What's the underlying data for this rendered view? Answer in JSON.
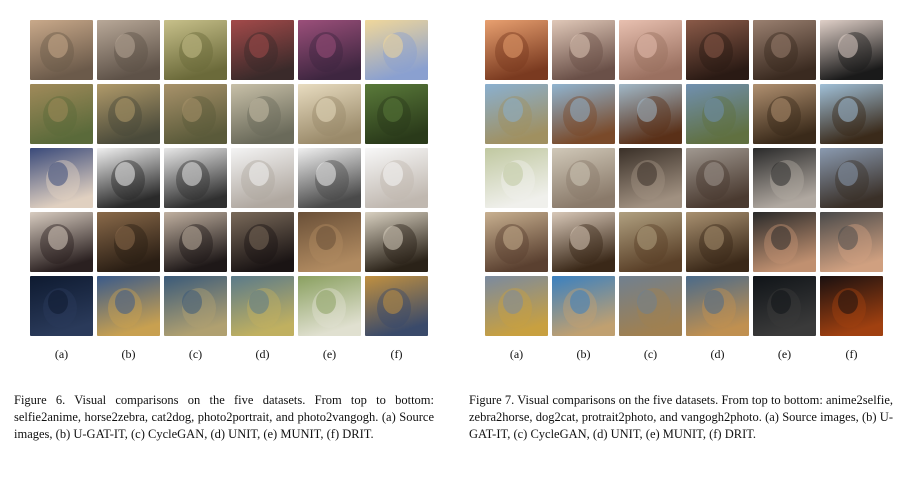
{
  "figures": [
    {
      "id": "fig6",
      "column_labels": [
        "(a)",
        "(b)",
        "(c)",
        "(d)",
        "(e)",
        "(f)"
      ],
      "rows": [
        {
          "content": "selfie2anime",
          "tones": [
            [
              "#c9a98a",
              "#6b5a4a"
            ],
            [
              "#b8a898",
              "#5e5248"
            ],
            [
              "#c7c08a",
              "#6b6a3a"
            ],
            [
              "#a34a4a",
              "#3a2a2a"
            ],
            [
              "#9b4f7a",
              "#3e2640"
            ],
            [
              "#f0d79a",
              "#8aa0d0"
            ]
          ]
        },
        {
          "content": "horse2zebra",
          "tones": [
            [
              "#a08a5a",
              "#5a6a3a"
            ],
            [
              "#b09a6a",
              "#4a4a3a"
            ],
            [
              "#a8926a",
              "#5a5a3a"
            ],
            [
              "#c8c0a8",
              "#6a6a5a"
            ],
            [
              "#e8dcc0",
              "#9a8a6a"
            ],
            [
              "#5a7a3a",
              "#2a3a1a"
            ]
          ]
        },
        {
          "content": "cat2dog",
          "tones": [
            [
              "#3a4a7a",
              "#e0d0c0"
            ],
            [
              "#f0f0f0",
              "#2a2a2a"
            ],
            [
              "#e8e8e8",
              "#303030"
            ],
            [
              "#f4f4f4",
              "#b0a8a0"
            ],
            [
              "#f0f0f0",
              "#4a4a4a"
            ],
            [
              "#f8f8f8",
              "#c0b8b0"
            ]
          ]
        },
        {
          "content": "photo2portrait",
          "tones": [
            [
              "#d8ccc0",
              "#2a2020"
            ],
            [
              "#8a6a4a",
              "#2a1e14"
            ],
            [
              "#c0b0a0",
              "#1e1818"
            ],
            [
              "#7a6a5a",
              "#1a1414"
            ],
            [
              "#6a5038",
              "#b08a60"
            ],
            [
              "#d8d0c0",
              "#2a2218"
            ]
          ]
        },
        {
          "content": "photo2vangogh",
          "tones": [
            [
              "#0e1a30",
              "#2a3a5a"
            ],
            [
              "#3a5a8a",
              "#c8a050"
            ],
            [
              "#3a5a7a",
              "#b0a070"
            ],
            [
              "#5a7a8a",
              "#c0b060"
            ],
            [
              "#8aa060",
              "#e0e0d0"
            ],
            [
              "#c09040",
              "#3a4a6a"
            ]
          ]
        }
      ],
      "caption": "Figure 6. Visual comparisons on the five datasets. From top to bottom: selfie2anime, horse2zebra, cat2dog, photo2portrait, and photo2vangogh. (a) Source images, (b) U-GAT-IT, (c) CycleGAN, (d) UNIT, (e) MUNIT, (f) DRIT."
    },
    {
      "id": "fig7",
      "column_labels": [
        "(a)",
        "(b)",
        "(c)",
        "(d)",
        "(e)",
        "(f)"
      ],
      "rows": [
        {
          "content": "anime2selfie",
          "tones": [
            [
              "#e8a070",
              "#7a3a20"
            ],
            [
              "#e0c8b8",
              "#6a5048"
            ],
            [
              "#e8c0b0",
              "#9a7060"
            ],
            [
              "#8a5a48",
              "#2a1a14"
            ],
            [
              "#9a8070",
              "#3a2a20"
            ],
            [
              "#e0d0c8",
              "#1a1a1a"
            ]
          ]
        },
        {
          "content": "zebra2horse",
          "tones": [
            [
              "#8ab0d0",
              "#a09060"
            ],
            [
              "#90b4d0",
              "#7a4a2a"
            ],
            [
              "#a0b8c8",
              "#5a3018"
            ],
            [
              "#7090b0",
              "#607040"
            ],
            [
              "#b09070",
              "#3a2a1a"
            ],
            [
              "#a0c0d8",
              "#3a2a1a"
            ]
          ]
        },
        {
          "content": "dog2cat",
          "tones": [
            [
              "#c0c8a0",
              "#f0f0ec"
            ],
            [
              "#d0c8b8",
              "#8a7a6a"
            ],
            [
              "#3a3028",
              "#a09080"
            ],
            [
              "#a09890",
              "#4a3a30"
            ],
            [
              "#2a2a2a",
              "#b0a8a0"
            ],
            [
              "#8a9ab0",
              "#3a3028"
            ]
          ]
        },
        {
          "content": "protrait2photo",
          "tones": [
            [
              "#c8b090",
              "#5a4030"
            ],
            [
              "#d8c8b8",
              "#3a2818"
            ],
            [
              "#b0a080",
              "#5a4028"
            ],
            [
              "#a89070",
              "#3a2818"
            ],
            [
              "#2a2a2a",
              "#c09070"
            ],
            [
              "#4a4a4a",
              "#d0a080"
            ]
          ]
        },
        {
          "content": "vangogh2photo",
          "tones": [
            [
              "#7a8aa0",
              "#c8a040"
            ],
            [
              "#3a80c0",
              "#c0a070"
            ],
            [
              "#708090",
              "#a08050"
            ],
            [
              "#4a6a8a",
              "#c09050"
            ],
            [
              "#101418",
              "#3a3a3a"
            ],
            [
              "#1a1010",
              "#a04010"
            ]
          ]
        }
      ],
      "caption": "Figure 7. Visual comparisons on the five datasets. From top to bottom: anime2selfie, zebra2horse, dog2cat, protrait2photo, and vangogh2photo. (a) Source images, (b) U-GAT-IT, (c) CycleGAN, (d) UNIT, (e) MUNIT, (f) DRIT."
    }
  ]
}
